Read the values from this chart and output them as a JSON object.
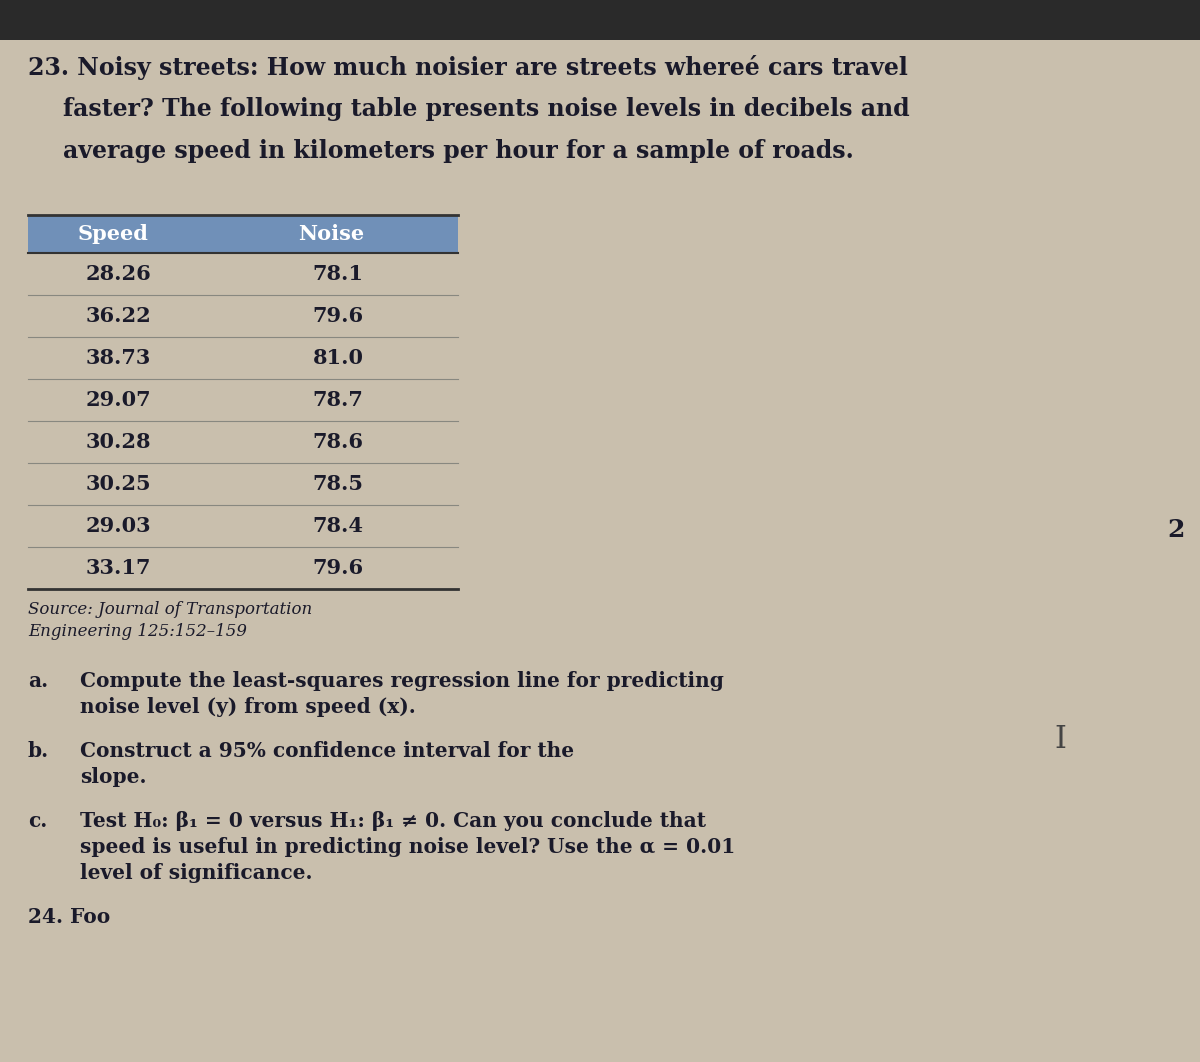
{
  "title_line1": "23. Noisy streets: How much noisier are streets whereé cars travel",
  "title_line2": "faster? The following table presents noise levels in decibels and",
  "title_line3": "average speed in kilometers per hour for a sample of roads.",
  "table_header": [
    "Speed",
    "Noise"
  ],
  "table_data": [
    [
      "28.26",
      "78.1"
    ],
    [
      "36.22",
      "79.6"
    ],
    [
      "38.73",
      "81.0"
    ],
    [
      "29.07",
      "78.7"
    ],
    [
      "30.28",
      "78.6"
    ],
    [
      "30.25",
      "78.5"
    ],
    [
      "29.03",
      "78.4"
    ],
    [
      "33.17",
      "79.6"
    ]
  ],
  "source_line1": "Source: Journal of Transportation",
  "source_line2": "Engineering 125:152–159",
  "part_a_label": "a.",
  "part_a_line1": "Compute the least-squares regression line for predicting",
  "part_a_line2": "noise level (y) from speed (x).",
  "part_b_label": "b.",
  "part_b_line1": "Construct a 95% confidence interval for the",
  "part_b_line2": "slope.",
  "part_c_label": "c.",
  "part_c_line1": "Test H₀: β₁ = 0 versus H₁: β₁ ≠ 0. Can you conclude that",
  "part_c_line2": "speed is useful in predicting noise level? Use the α = 0.01",
  "part_c_line3": "level of significance.",
  "footer_text": "24. Foo",
  "bg_color": "#c9bfad",
  "top_bar_color": "#2a2a2a",
  "header_bg": "#7090b8",
  "header_text_color": "#ffffff",
  "table_text_color": "#1a1a2a",
  "body_text_color": "#1a1a2a",
  "row_bg_even": "#c9bfad",
  "row_bg_odd": "#c9bfad",
  "row_line_color": "#888880",
  "table_border_color": "#333333",
  "source_color": "#1a1a2a",
  "right_margin_num": "2",
  "cursor_char": "I",
  "title_fontsize": 17,
  "table_header_fontsize": 15,
  "table_data_fontsize": 15,
  "body_fontsize": 14.5,
  "source_fontsize": 12
}
